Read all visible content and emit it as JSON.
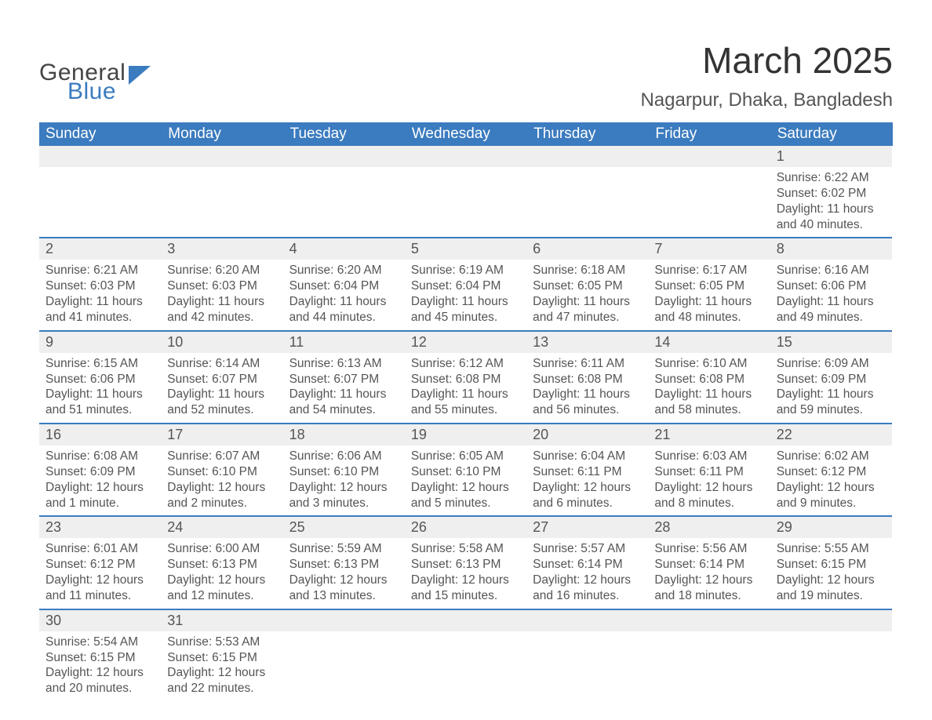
{
  "logo": {
    "text1": "General",
    "text2": "Blue",
    "shape_color": "#3b7bbf"
  },
  "title": "March 2025",
  "location": "Nagarpur, Dhaka, Bangladesh",
  "header_bg": "#3b7bbf",
  "header_fg": "#ffffff",
  "daynum_bg": "#efefef",
  "divider_color": "#3b7bbf",
  "text_color": "#555555",
  "days_of_week": [
    "Sunday",
    "Monday",
    "Tuesday",
    "Wednesday",
    "Thursday",
    "Friday",
    "Saturday"
  ],
  "weeks": [
    {
      "cells": [
        null,
        null,
        null,
        null,
        null,
        null,
        {
          "n": "1",
          "sunrise": "Sunrise: 6:22 AM",
          "sunset": "Sunset: 6:02 PM",
          "dl1": "Daylight: 11 hours",
          "dl2": "and 40 minutes."
        }
      ]
    },
    {
      "cells": [
        {
          "n": "2",
          "sunrise": "Sunrise: 6:21 AM",
          "sunset": "Sunset: 6:03 PM",
          "dl1": "Daylight: 11 hours",
          "dl2": "and 41 minutes."
        },
        {
          "n": "3",
          "sunrise": "Sunrise: 6:20 AM",
          "sunset": "Sunset: 6:03 PM",
          "dl1": "Daylight: 11 hours",
          "dl2": "and 42 minutes."
        },
        {
          "n": "4",
          "sunrise": "Sunrise: 6:20 AM",
          "sunset": "Sunset: 6:04 PM",
          "dl1": "Daylight: 11 hours",
          "dl2": "and 44 minutes."
        },
        {
          "n": "5",
          "sunrise": "Sunrise: 6:19 AM",
          "sunset": "Sunset: 6:04 PM",
          "dl1": "Daylight: 11 hours",
          "dl2": "and 45 minutes."
        },
        {
          "n": "6",
          "sunrise": "Sunrise: 6:18 AM",
          "sunset": "Sunset: 6:05 PM",
          "dl1": "Daylight: 11 hours",
          "dl2": "and 47 minutes."
        },
        {
          "n": "7",
          "sunrise": "Sunrise: 6:17 AM",
          "sunset": "Sunset: 6:05 PM",
          "dl1": "Daylight: 11 hours",
          "dl2": "and 48 minutes."
        },
        {
          "n": "8",
          "sunrise": "Sunrise: 6:16 AM",
          "sunset": "Sunset: 6:06 PM",
          "dl1": "Daylight: 11 hours",
          "dl2": "and 49 minutes."
        }
      ]
    },
    {
      "cells": [
        {
          "n": "9",
          "sunrise": "Sunrise: 6:15 AM",
          "sunset": "Sunset: 6:06 PM",
          "dl1": "Daylight: 11 hours",
          "dl2": "and 51 minutes."
        },
        {
          "n": "10",
          "sunrise": "Sunrise: 6:14 AM",
          "sunset": "Sunset: 6:07 PM",
          "dl1": "Daylight: 11 hours",
          "dl2": "and 52 minutes."
        },
        {
          "n": "11",
          "sunrise": "Sunrise: 6:13 AM",
          "sunset": "Sunset: 6:07 PM",
          "dl1": "Daylight: 11 hours",
          "dl2": "and 54 minutes."
        },
        {
          "n": "12",
          "sunrise": "Sunrise: 6:12 AM",
          "sunset": "Sunset: 6:08 PM",
          "dl1": "Daylight: 11 hours",
          "dl2": "and 55 minutes."
        },
        {
          "n": "13",
          "sunrise": "Sunrise: 6:11 AM",
          "sunset": "Sunset: 6:08 PM",
          "dl1": "Daylight: 11 hours",
          "dl2": "and 56 minutes."
        },
        {
          "n": "14",
          "sunrise": "Sunrise: 6:10 AM",
          "sunset": "Sunset: 6:08 PM",
          "dl1": "Daylight: 11 hours",
          "dl2": "and 58 minutes."
        },
        {
          "n": "15",
          "sunrise": "Sunrise: 6:09 AM",
          "sunset": "Sunset: 6:09 PM",
          "dl1": "Daylight: 11 hours",
          "dl2": "and 59 minutes."
        }
      ]
    },
    {
      "cells": [
        {
          "n": "16",
          "sunrise": "Sunrise: 6:08 AM",
          "sunset": "Sunset: 6:09 PM",
          "dl1": "Daylight: 12 hours",
          "dl2": "and 1 minute."
        },
        {
          "n": "17",
          "sunrise": "Sunrise: 6:07 AM",
          "sunset": "Sunset: 6:10 PM",
          "dl1": "Daylight: 12 hours",
          "dl2": "and 2 minutes."
        },
        {
          "n": "18",
          "sunrise": "Sunrise: 6:06 AM",
          "sunset": "Sunset: 6:10 PM",
          "dl1": "Daylight: 12 hours",
          "dl2": "and 3 minutes."
        },
        {
          "n": "19",
          "sunrise": "Sunrise: 6:05 AM",
          "sunset": "Sunset: 6:10 PM",
          "dl1": "Daylight: 12 hours",
          "dl2": "and 5 minutes."
        },
        {
          "n": "20",
          "sunrise": "Sunrise: 6:04 AM",
          "sunset": "Sunset: 6:11 PM",
          "dl1": "Daylight: 12 hours",
          "dl2": "and 6 minutes."
        },
        {
          "n": "21",
          "sunrise": "Sunrise: 6:03 AM",
          "sunset": "Sunset: 6:11 PM",
          "dl1": "Daylight: 12 hours",
          "dl2": "and 8 minutes."
        },
        {
          "n": "22",
          "sunrise": "Sunrise: 6:02 AM",
          "sunset": "Sunset: 6:12 PM",
          "dl1": "Daylight: 12 hours",
          "dl2": "and 9 minutes."
        }
      ]
    },
    {
      "cells": [
        {
          "n": "23",
          "sunrise": "Sunrise: 6:01 AM",
          "sunset": "Sunset: 6:12 PM",
          "dl1": "Daylight: 12 hours",
          "dl2": "and 11 minutes."
        },
        {
          "n": "24",
          "sunrise": "Sunrise: 6:00 AM",
          "sunset": "Sunset: 6:13 PM",
          "dl1": "Daylight: 12 hours",
          "dl2": "and 12 minutes."
        },
        {
          "n": "25",
          "sunrise": "Sunrise: 5:59 AM",
          "sunset": "Sunset: 6:13 PM",
          "dl1": "Daylight: 12 hours",
          "dl2": "and 13 minutes."
        },
        {
          "n": "26",
          "sunrise": "Sunrise: 5:58 AM",
          "sunset": "Sunset: 6:13 PM",
          "dl1": "Daylight: 12 hours",
          "dl2": "and 15 minutes."
        },
        {
          "n": "27",
          "sunrise": "Sunrise: 5:57 AM",
          "sunset": "Sunset: 6:14 PM",
          "dl1": "Daylight: 12 hours",
          "dl2": "and 16 minutes."
        },
        {
          "n": "28",
          "sunrise": "Sunrise: 5:56 AM",
          "sunset": "Sunset: 6:14 PM",
          "dl1": "Daylight: 12 hours",
          "dl2": "and 18 minutes."
        },
        {
          "n": "29",
          "sunrise": "Sunrise: 5:55 AM",
          "sunset": "Sunset: 6:15 PM",
          "dl1": "Daylight: 12 hours",
          "dl2": "and 19 minutes."
        }
      ]
    },
    {
      "cells": [
        {
          "n": "30",
          "sunrise": "Sunrise: 5:54 AM",
          "sunset": "Sunset: 6:15 PM",
          "dl1": "Daylight: 12 hours",
          "dl2": "and 20 minutes."
        },
        {
          "n": "31",
          "sunrise": "Sunrise: 5:53 AM",
          "sunset": "Sunset: 6:15 PM",
          "dl1": "Daylight: 12 hours",
          "dl2": "and 22 minutes."
        },
        null,
        null,
        null,
        null,
        null
      ]
    }
  ]
}
